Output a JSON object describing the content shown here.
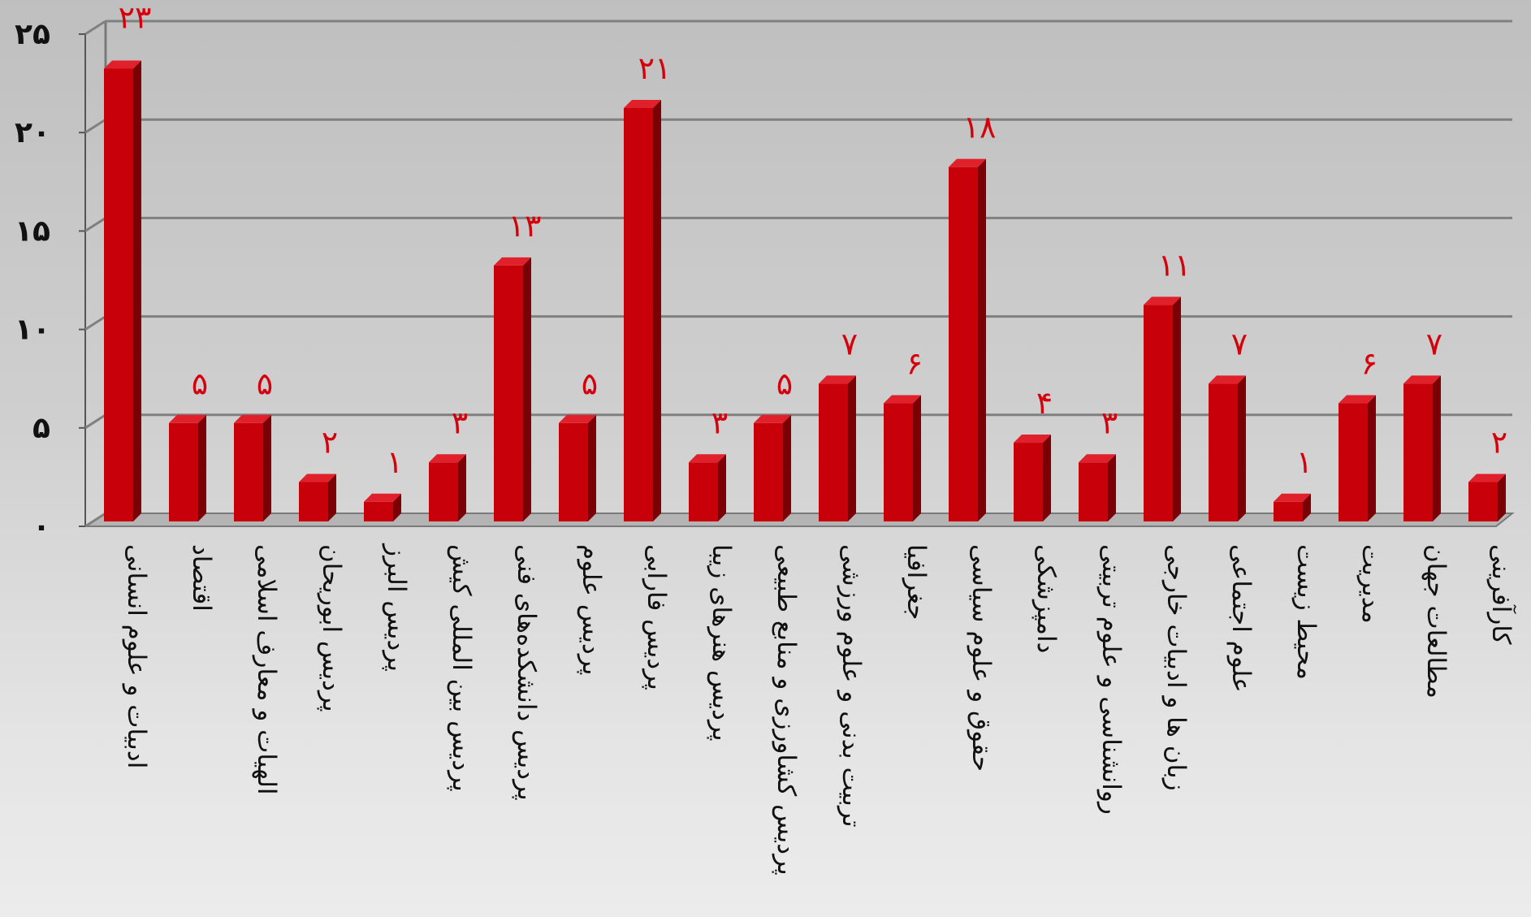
{
  "chart_data": {
    "type": "bar",
    "categories": [
      "ادبیات و علوم انسانی",
      "اقتصاد",
      "الهیات و معارف اسلامی",
      "پردیس ابوریحان",
      "پردیس البرز",
      "پردیس بین المللی کیش",
      "پردیس دانشکده‌های فنی",
      "پردیس علوم",
      "پردیس فارابی",
      "پردیس هنرهای زیبا",
      "پردیس کشاورزی و منابع طبیعی",
      "تربیت بدنی و علوم ورزشی",
      "جغرافیا",
      "حقوق و علوم سیاسی",
      "دامپزشکی",
      "روانشناسی و علوم تربیتی",
      "زبان ها و ادبیات خارجی",
      "علوم اجتماعی",
      "محیط زیست",
      "مدیریت",
      "مطالعات جهان",
      "کارآفرینی"
    ],
    "values": [
      23,
      5,
      5,
      2,
      1,
      3,
      13,
      5,
      21,
      3,
      5,
      7,
      6,
      18,
      4,
      3,
      11,
      7,
      1,
      6,
      7,
      2
    ],
    "data_labels": [
      "۲۳",
      "۵",
      "۵",
      "۲",
      "۱",
      "۳",
      "۱۳",
      "۵",
      "۲۱",
      "۳",
      "۵",
      "۷",
      "۶",
      "۱۸",
      "۴",
      "۳",
      "۱۱",
      "۷",
      "۱",
      "۶",
      "۷",
      "۲"
    ],
    "yticks": [
      0,
      5,
      10,
      15,
      20,
      25
    ],
    "ytick_labels": [
      "۰",
      "۵",
      "۱۰",
      "۱۵",
      "۲۰",
      "۲۵"
    ],
    "ylim": [
      0,
      25
    ],
    "title": "",
    "xlabel": "",
    "ylabel": "",
    "grid": true,
    "legend": "none",
    "bar_color": "#c8000a",
    "bar_side_color": "#7a0006",
    "bar_top_color": "#e0202a",
    "label_color": "#d4000b",
    "gridline_color": "#808080"
  }
}
